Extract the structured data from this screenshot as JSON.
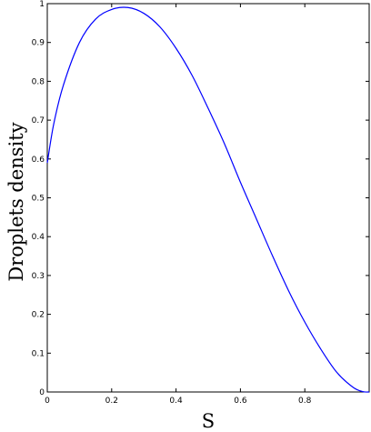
{
  "chart_data": {
    "type": "line",
    "title": "",
    "xlabel": "S",
    "ylabel": "Droplets density",
    "xlim": [
      0,
      1
    ],
    "ylim": [
      0,
      1
    ],
    "grid": false,
    "x_ticks": [
      0,
      0.2,
      0.4,
      0.6,
      0.8
    ],
    "x_tick_labels": [
      "0",
      "0.2",
      "0.4",
      "0.6",
      "0.8"
    ],
    "y_ticks": [
      0,
      0.1,
      0.2,
      0.3,
      0.4,
      0.5,
      0.6,
      0.7,
      0.8,
      0.9,
      1
    ],
    "y_tick_labels": [
      "0",
      "0.1",
      "0.2",
      "0.3",
      "0.4",
      "0.5",
      "0.6",
      "0.7",
      "0.8",
      "0.9",
      "1"
    ],
    "series": [
      {
        "color": "#0000ff",
        "x": [
          0,
          0.02,
          0.05,
          0.1,
          0.15,
          0.2,
          0.25,
          0.3,
          0.35,
          0.4,
          0.45,
          0.5,
          0.55,
          0.6,
          0.65,
          0.7,
          0.75,
          0.8,
          0.85,
          0.9,
          0.95,
          0.98,
          1
        ],
        "y": [
          0.59,
          0.69,
          0.79,
          0.9,
          0.96,
          0.985,
          0.99,
          0.975,
          0.94,
          0.885,
          0.815,
          0.73,
          0.64,
          0.54,
          0.445,
          0.35,
          0.26,
          0.18,
          0.11,
          0.05,
          0.012,
          0.001,
          0
        ]
      }
    ]
  }
}
